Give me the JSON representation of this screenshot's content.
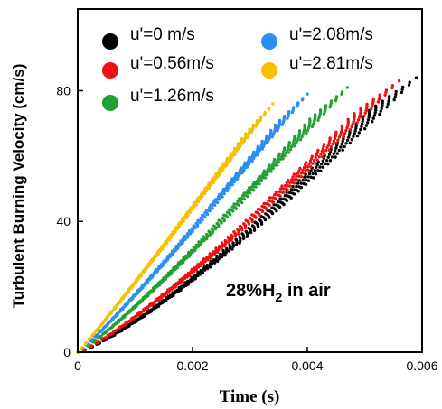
{
  "chart_data": {
    "type": "scatter",
    "xlabel": "Time (s)",
    "ylabel": "Turbulent Burning Velocity (cm/s)",
    "xlim": [
      0,
      0.006
    ],
    "ylim": [
      0,
      105
    ],
    "xticks": [
      0,
      0.002,
      0.004,
      0.006
    ],
    "xtick_labels": [
      "0",
      "0.002",
      "0.004",
      "0.006"
    ],
    "yticks": [
      0,
      40,
      80
    ],
    "ytick_labels": [
      "0",
      "40",
      "80"
    ],
    "grid": false,
    "legend_position": "top-left",
    "annotation": {
      "main": "28%H",
      "sub": "2",
      "tail": " in air"
    },
    "series": [
      {
        "name": "u'=0 m/s",
        "color": "#000000",
        "t_end": 0.0059,
        "v_end": 84,
        "curve": 1.25
      },
      {
        "name": "u'=0.56m/s",
        "color": "#ee1111",
        "t_end": 0.0056,
        "v_end": 83,
        "curve": 1.2
      },
      {
        "name": "u'=1.26m/s",
        "color": "#22a033",
        "t_end": 0.0047,
        "v_end": 81,
        "curve": 1.15
      },
      {
        "name": "u'=2.08m/s",
        "color": "#2b8ef0",
        "t_end": 0.004,
        "v_end": 79,
        "curve": 1.1
      },
      {
        "name": "u'=2.81m/s",
        "color": "#f5c000",
        "t_end": 0.0034,
        "v_end": 76,
        "curve": 1.05
      }
    ]
  }
}
